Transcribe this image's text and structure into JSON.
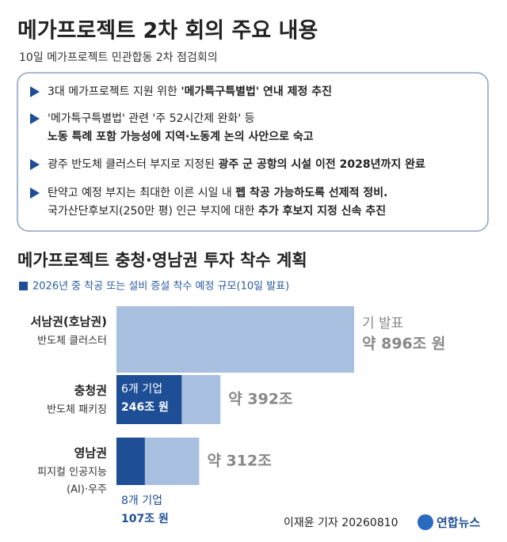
{
  "header": {
    "title": "메가프로젝트 2차 회의 주요 내용",
    "subtitle": "10일 메가프로젝트 민관합동 2차 점검회의"
  },
  "summary": {
    "items": [
      {
        "lines": [
          [
            {
              "text": "3대 메가프로젝트 지원 위한 ",
              "bold": false
            },
            {
              "text": "'메가특구특별법' 연내 제정 추진",
              "bold": true
            }
          ]
        ]
      },
      {
        "lines": [
          [
            {
              "text": "'메가특구특별법' 관련 '주 52시간제 완화' 등",
              "bold": false
            }
          ],
          [
            {
              "text": "노동 특례 포함 가능성에 지역·노동계 논의 사안으로 숙고",
              "bold": true
            }
          ]
        ]
      },
      {
        "lines": [
          [
            {
              "text": "광주 반도체 클러스터 부지로 지정된 ",
              "bold": false
            },
            {
              "text": "광주 군 공항의 시설 이전 2028년까지 완료",
              "bold": true
            }
          ]
        ]
      },
      {
        "lines": [
          [
            {
              "text": "탄약고 예정 부지는 최대한 이른 시일 내 ",
              "bold": false
            },
            {
              "text": "펩 착공 가능하도록 선제적 정비.",
              "bold": true
            }
          ],
          [
            {
              "text": "국가산단후보지(250만 평) 인근 부지에 대한 ",
              "bold": false
            },
            {
              "text": "추가 후보지 지정 신속 추진",
              "bold": true
            }
          ]
        ]
      }
    ]
  },
  "chart_data": {
    "type": "bar",
    "orientation": "horizontal",
    "title": "메가프로젝트 충청·영남권 투자 착수 계획",
    "categories": [
      "서남권(호남권)",
      "충청권",
      "영남권"
    ],
    "subcategories": [
      [
        "반도체 클러스터"
      ],
      [
        "반도체 패키징"
      ],
      [
        "피지컬 인공지능",
        "(AI)·우주"
      ]
    ],
    "xlim": [
      0,
      896
    ],
    "annotation": "기 발표",
    "series": [
      {
        "color": "#a9bfe0",
        "values": [
          896,
          392,
          312
        ],
        "value_labels": [
          "약 896조 원",
          "약 392조",
          "약 312조"
        ]
      },
      {
        "name": "2026년 중 착공 또는 설비 증설 착수 예정 규모(10일 발표)",
        "color": "#1e4f96",
        "values": [
          null,
          246,
          107
        ],
        "value_labels": [
          null,
          "246조 원",
          "107조 원"
        ],
        "company_labels": [
          null,
          "6개 기업",
          "8개 기업"
        ]
      }
    ]
  },
  "footer": {
    "credit": "이재윤 기자 20260810",
    "logo": "연합뉴스"
  }
}
